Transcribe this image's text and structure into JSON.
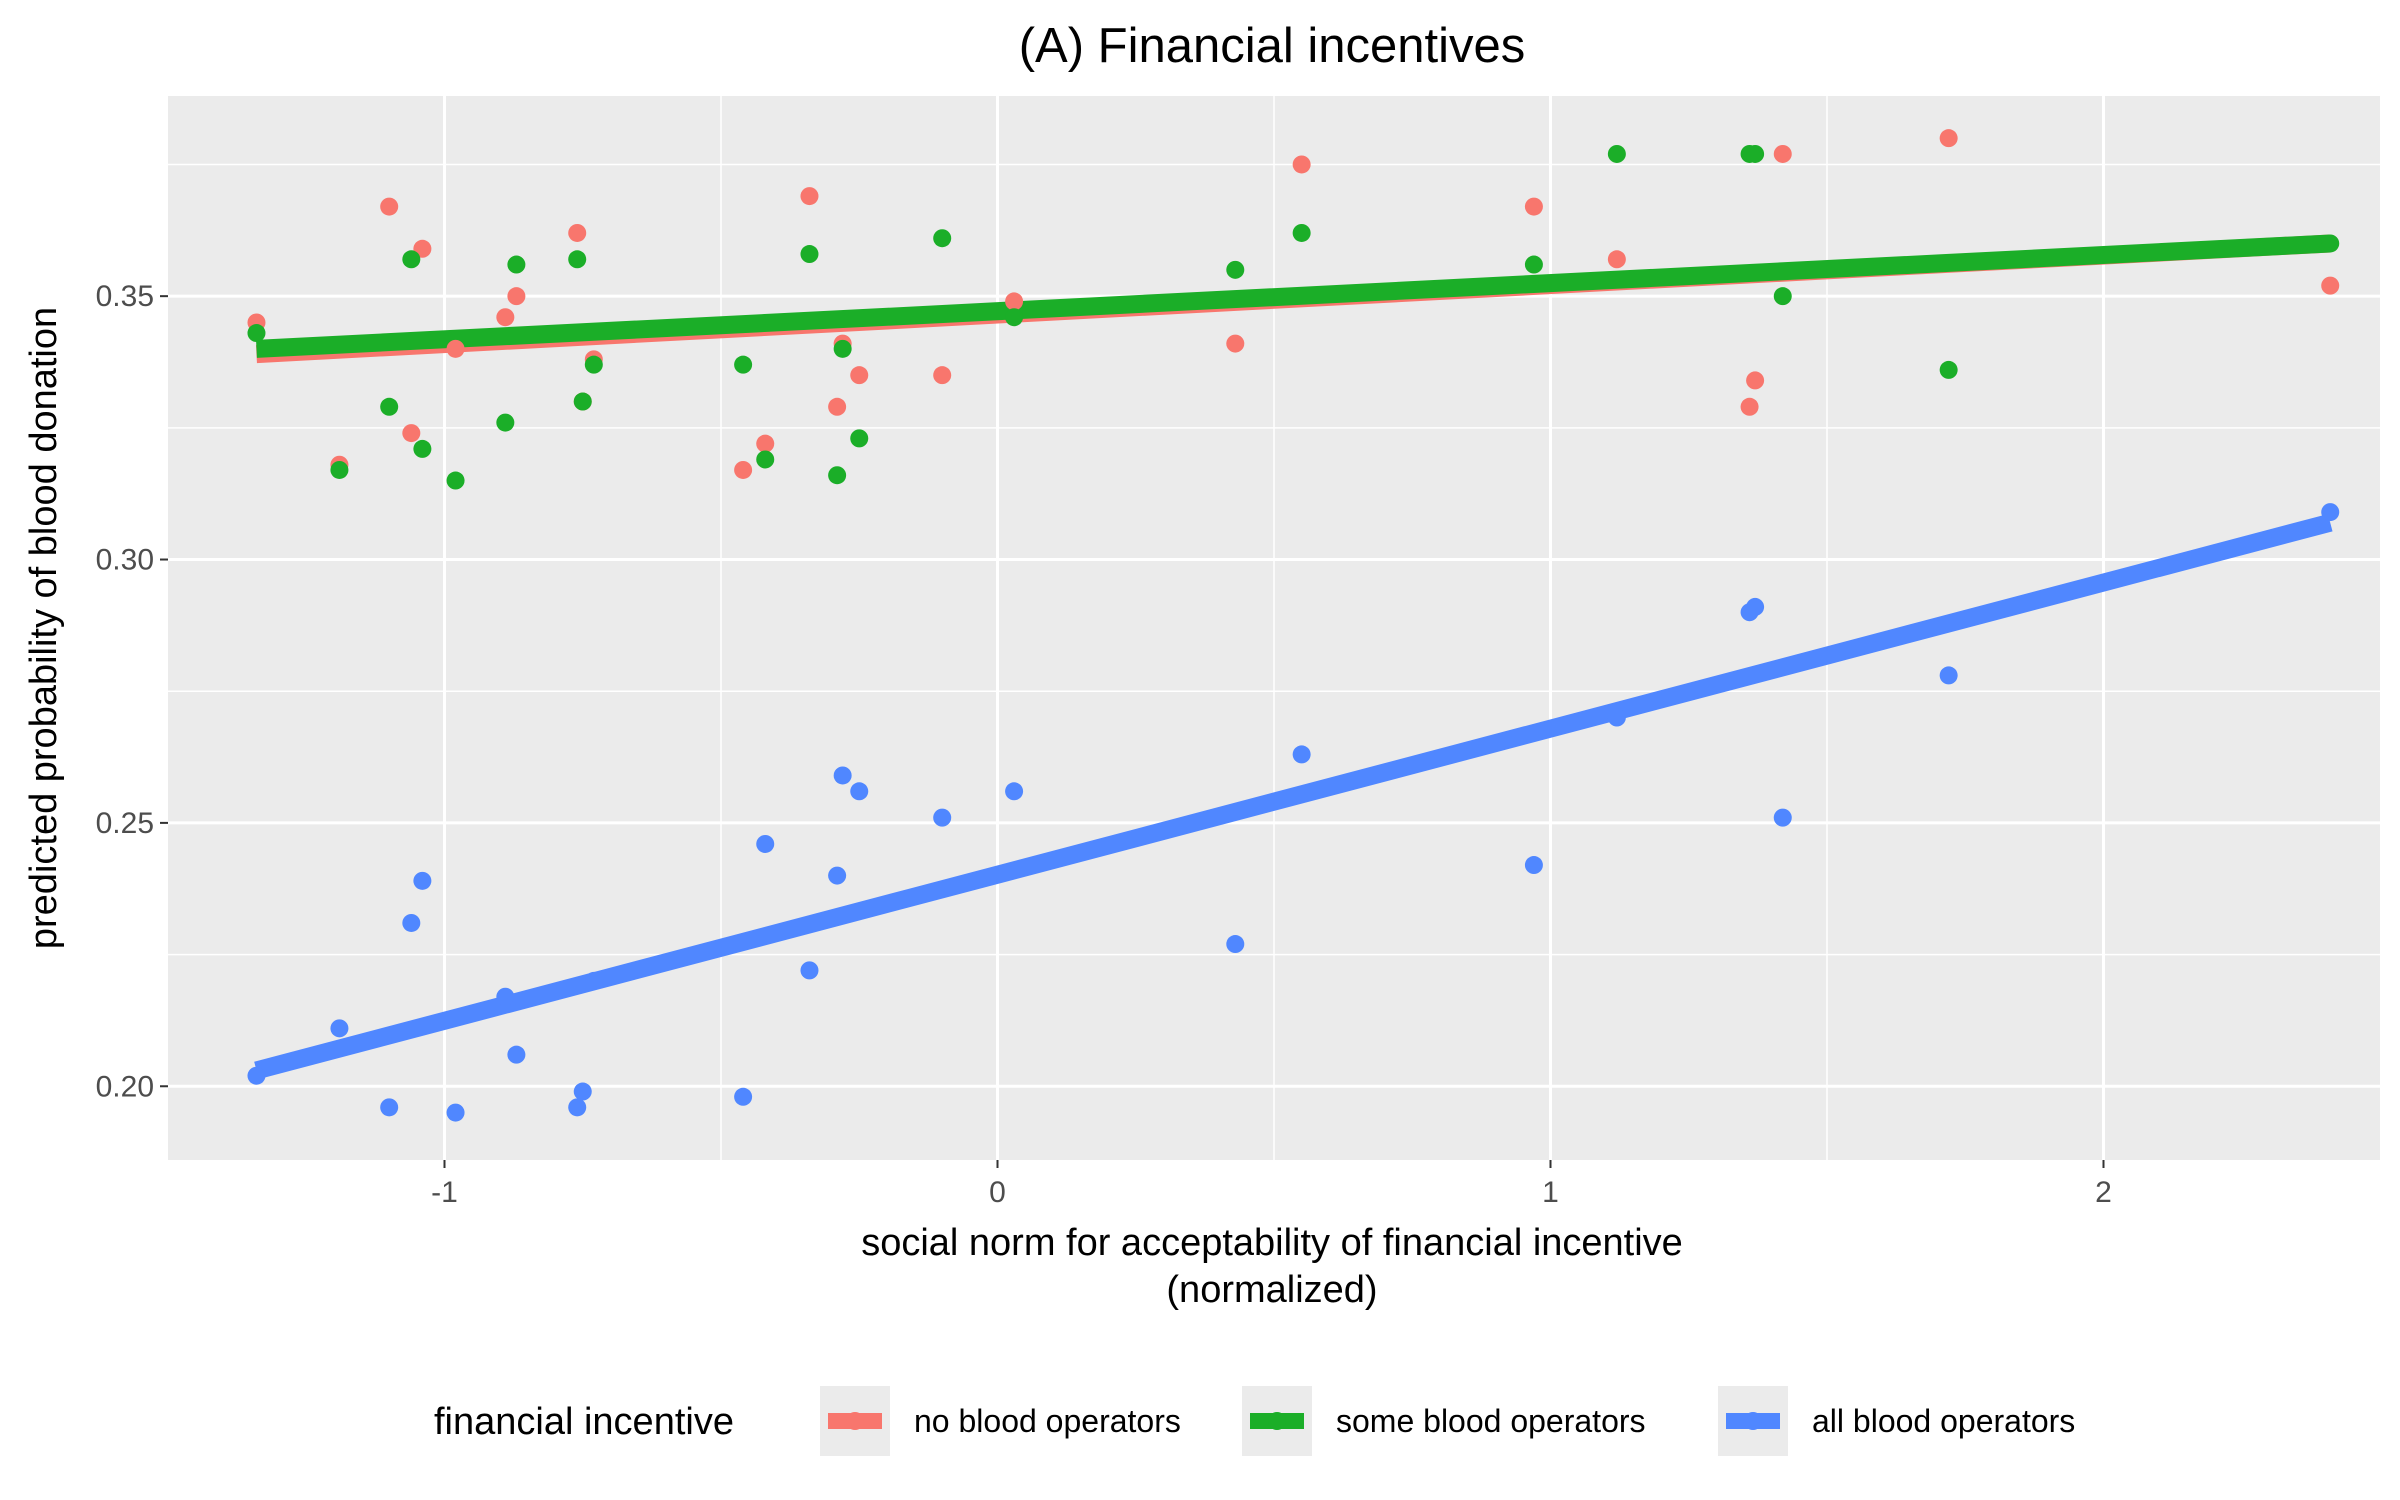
{
  "chart_data": {
    "type": "scatter",
    "title": "(A) Financial incentives",
    "xlabel_lines": [
      "social norm for acceptability of financial incentive",
      "(normalized)"
    ],
    "ylabel": "predicted probability of blood donation",
    "xlim": [
      -1.5,
      2.5
    ],
    "ylim": [
      0.186,
      0.388
    ],
    "x_ticks": [
      -1,
      0,
      1,
      2
    ],
    "x_tick_labels": [
      "-1",
      "0",
      "1",
      "2"
    ],
    "y_ticks": [
      0.2,
      0.25,
      0.3,
      0.35
    ],
    "y_tick_labels": [
      "0.20",
      "0.25",
      "0.30",
      "0.35"
    ],
    "grid": true,
    "legend_position": "bottom",
    "legend_title": "financial incentive",
    "series": [
      {
        "name": "no blood operators",
        "color": "#F8766D",
        "fit": [
          [
            -1.34,
            0.339
          ],
          [
            2.41,
            0.36
          ]
        ],
        "points": [
          [
            -1.34,
            0.345
          ],
          [
            -1.19,
            0.318
          ],
          [
            -1.1,
            0.367
          ],
          [
            -1.06,
            0.324
          ],
          [
            -1.04,
            0.359
          ],
          [
            -0.98,
            0.34
          ],
          [
            -0.89,
            0.346
          ],
          [
            -0.87,
            0.35
          ],
          [
            -0.76,
            0.362
          ],
          [
            -0.75,
            0.33
          ],
          [
            -0.73,
            0.338
          ],
          [
            -0.46,
            0.317
          ],
          [
            -0.42,
            0.322
          ],
          [
            -0.34,
            0.369
          ],
          [
            -0.29,
            0.329
          ],
          [
            -0.28,
            0.341
          ],
          [
            -0.25,
            0.335
          ],
          [
            -0.1,
            0.335
          ],
          [
            0.03,
            0.349
          ],
          [
            0.43,
            0.341
          ],
          [
            0.55,
            0.375
          ],
          [
            0.97,
            0.367
          ],
          [
            1.12,
            0.357
          ],
          [
            1.36,
            0.329
          ],
          [
            1.37,
            0.334
          ],
          [
            1.42,
            0.377
          ],
          [
            1.72,
            0.38
          ],
          [
            2.41,
            0.352
          ]
        ]
      },
      {
        "name": "some blood operators",
        "color": "#1BAE28",
        "fit": [
          [
            -1.34,
            0.34
          ],
          [
            2.41,
            0.36
          ]
        ],
        "points": [
          [
            -1.34,
            0.343
          ],
          [
            -1.19,
            0.317
          ],
          [
            -1.1,
            0.329
          ],
          [
            -1.06,
            0.357
          ],
          [
            -1.04,
            0.321
          ],
          [
            -0.98,
            0.315
          ],
          [
            -0.89,
            0.326
          ],
          [
            -0.87,
            0.356
          ],
          [
            -0.76,
            0.357
          ],
          [
            -0.75,
            0.33
          ],
          [
            -0.73,
            0.337
          ],
          [
            -0.46,
            0.337
          ],
          [
            -0.42,
            0.319
          ],
          [
            -0.34,
            0.358
          ],
          [
            -0.29,
            0.316
          ],
          [
            -0.28,
            0.34
          ],
          [
            -0.25,
            0.323
          ],
          [
            -0.1,
            0.361
          ],
          [
            0.03,
            0.346
          ],
          [
            0.43,
            0.355
          ],
          [
            0.55,
            0.362
          ],
          [
            0.97,
            0.356
          ],
          [
            1.12,
            0.377
          ],
          [
            1.36,
            0.377
          ],
          [
            1.37,
            0.377
          ],
          [
            1.42,
            0.35
          ],
          [
            1.72,
            0.336
          ],
          [
            2.41,
            0.36
          ]
        ]
      },
      {
        "name": "all blood operators",
        "color": "#5087FF",
        "fit": [
          [
            -1.34,
            0.203
          ],
          [
            2.41,
            0.307
          ]
        ],
        "points": [
          [
            -1.34,
            0.202
          ],
          [
            -1.19,
            0.211
          ],
          [
            -1.1,
            0.196
          ],
          [
            -1.06,
            0.231
          ],
          [
            -1.04,
            0.239
          ],
          [
            -0.98,
            0.195
          ],
          [
            -0.89,
            0.217
          ],
          [
            -0.87,
            0.206
          ],
          [
            -0.76,
            0.196
          ],
          [
            -0.75,
            0.199
          ],
          [
            -0.73,
            0.22
          ],
          [
            -0.46,
            0.198
          ],
          [
            -0.42,
            0.246
          ],
          [
            -0.34,
            0.222
          ],
          [
            -0.29,
            0.24
          ],
          [
            -0.28,
            0.259
          ],
          [
            -0.25,
            0.256
          ],
          [
            -0.1,
            0.251
          ],
          [
            0.03,
            0.256
          ],
          [
            0.43,
            0.227
          ],
          [
            0.55,
            0.263
          ],
          [
            0.97,
            0.242
          ],
          [
            1.12,
            0.27
          ],
          [
            1.36,
            0.29
          ],
          [
            1.37,
            0.291
          ],
          [
            1.42,
            0.251
          ],
          [
            1.72,
            0.278
          ],
          [
            2.41,
            0.309
          ]
        ]
      }
    ]
  }
}
